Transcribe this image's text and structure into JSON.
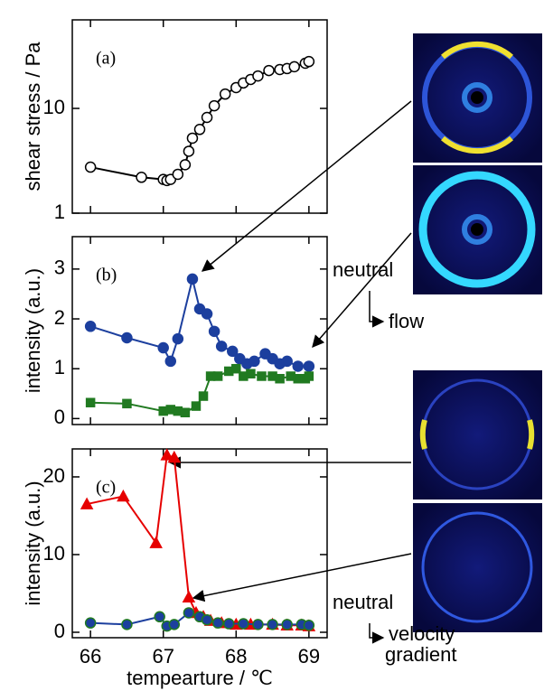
{
  "chart_data": [
    {
      "type": "line",
      "title": "(a)",
      "ylabel": "shear stress / Pa",
      "ylog": true,
      "xlim": [
        65.75,
        69.25
      ],
      "xticks": [
        66,
        67,
        68,
        69
      ],
      "xtick_labels": false,
      "ylim": [
        1,
        70
      ],
      "yticks": [
        1,
        10
      ],
      "series": [
        {
          "color": "#000000",
          "marker": "circle",
          "fill": "#ffffff",
          "edgecolor": "#000000",
          "x": [
            66.0,
            66.7,
            67.0,
            67.05,
            67.1,
            67.2,
            67.3,
            67.35,
            67.4,
            67.5,
            67.6,
            67.7,
            67.85,
            68.0,
            68.1,
            68.2,
            68.3,
            68.45,
            68.6,
            68.7,
            68.8,
            68.95,
            69.0
          ],
          "values": [
            2.75,
            2.2,
            2.1,
            2.05,
            2.1,
            2.35,
            2.9,
            3.9,
            5.2,
            6.3,
            8.2,
            10.6,
            13.7,
            15.8,
            17.5,
            18.9,
            20.4,
            23,
            23.5,
            24,
            25,
            27,
            28
          ]
        }
      ]
    },
    {
      "type": "line",
      "title": "(b)",
      "ylabel": "intensity (a.u.)",
      "xlim": [
        65.75,
        69.25
      ],
      "xticks": [
        66,
        67,
        68,
        69
      ],
      "xtick_labels": false,
      "ylim": [
        -0.12,
        3.65
      ],
      "yticks": [
        0,
        1,
        2,
        3
      ],
      "series": [
        {
          "color": "#1c3f9e",
          "marker": "circle",
          "fill": "#1c3f9e",
          "edgecolor": "#1c3f9e",
          "x": [
            66.0,
            66.5,
            67.0,
            67.1,
            67.2,
            67.4,
            67.5,
            67.6,
            67.7,
            67.8,
            67.95,
            68.05,
            68.15,
            68.25,
            68.4,
            68.5,
            68.6,
            68.7,
            68.85,
            69.0
          ],
          "values": [
            1.85,
            1.62,
            1.42,
            1.15,
            1.6,
            2.8,
            2.2,
            2.1,
            1.75,
            1.45,
            1.35,
            1.2,
            1.1,
            1.15,
            1.3,
            1.2,
            1.1,
            1.15,
            1.05,
            1.05
          ]
        },
        {
          "color": "#217a21",
          "marker": "square",
          "fill": "#217a21",
          "edgecolor": "#217a21",
          "x": [
            66.0,
            66.5,
            67.0,
            67.1,
            67.2,
            67.3,
            67.45,
            67.55,
            67.65,
            67.75,
            67.9,
            68.0,
            68.1,
            68.2,
            68.35,
            68.5,
            68.6,
            68.75,
            68.85,
            68.95,
            69.0
          ],
          "values": [
            0.32,
            0.3,
            0.15,
            0.18,
            0.15,
            0.12,
            0.25,
            0.45,
            0.85,
            0.85,
            0.95,
            1.0,
            0.85,
            0.9,
            0.85,
            0.85,
            0.8,
            0.85,
            0.8,
            0.8,
            0.85
          ]
        }
      ]
    },
    {
      "type": "line",
      "title": "(c)",
      "ylabel": "intensity (a.u.)",
      "xlabel": "tempearture / ℃",
      "xlim": [
        65.75,
        69.25
      ],
      "xticks": [
        66,
        67,
        68,
        69
      ],
      "ylim": [
        -0.7,
        23.6
      ],
      "yticks": [
        0,
        10,
        20
      ],
      "series": [
        {
          "color": "#e60000",
          "marker": "triangle",
          "fill": "#e60000",
          "edgecolor": "#e60000",
          "x": [
            65.95,
            66.45,
            66.9,
            67.05,
            67.15,
            67.35,
            67.45,
            67.55,
            67.65,
            67.8,
            68.0,
            68.2,
            68.5,
            68.7,
            68.9,
            69.0
          ],
          "values": [
            16.5,
            17.5,
            11.5,
            22.8,
            22.5,
            4.5,
            2.5,
            2.0,
            1.5,
            1.2,
            1.0,
            1.0,
            1.0,
            0.9,
            0.9,
            0.8
          ]
        },
        {
          "color": "#1c3f9e",
          "marker": "circle",
          "fill": "#1c3f9e",
          "edgecolor": "#217a21",
          "x": [
            66.0,
            66.5,
            66.95,
            67.05,
            67.15,
            67.35,
            67.5,
            67.6,
            67.75,
            67.9,
            68.1,
            68.3,
            68.5,
            68.7,
            68.9,
            69.0
          ],
          "values": [
            1.2,
            1.0,
            2.0,
            0.8,
            1.0,
            2.5,
            2.0,
            1.6,
            1.2,
            1.1,
            1.1,
            1.0,
            1.0,
            1.0,
            1.0,
            0.9
          ]
        }
      ]
    }
  ],
  "figure": {
    "labels": [
      "neutral",
      "flow",
      "neutral",
      "velocity",
      "gradient"
    ]
  }
}
